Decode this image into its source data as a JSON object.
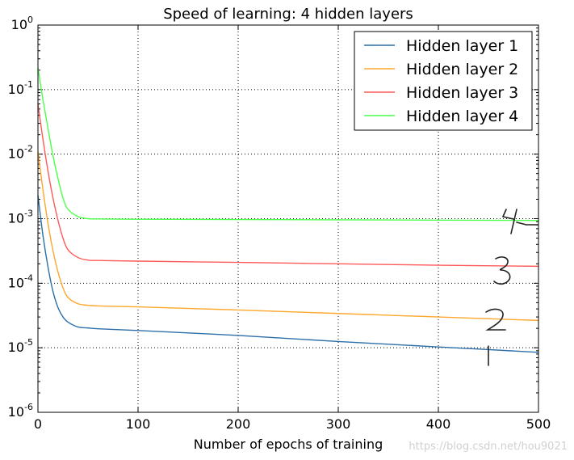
{
  "chart_data": {
    "type": "line",
    "title": "Speed of learning: 4 hidden layers",
    "xlabel": "Number of epochs of training",
    "ylabel": "",
    "yscale": "log",
    "xlim": [
      0,
      500
    ],
    "ylim": [
      1e-06,
      1
    ],
    "grid": true,
    "legend_position": "top-right",
    "x_ticks": [
      0,
      100,
      200,
      300,
      400,
      500
    ],
    "y_ticks": [
      {
        "value": 1e-06,
        "base": "10",
        "exp": "-6"
      },
      {
        "value": 1e-05,
        "base": "10",
        "exp": "-5"
      },
      {
        "value": 0.0001,
        "base": "10",
        "exp": "-4"
      },
      {
        "value": 0.001,
        "base": "10",
        "exp": "-3"
      },
      {
        "value": 0.01,
        "base": "10",
        "exp": "-2"
      },
      {
        "value": 0.1,
        "base": "10",
        "exp": "-1"
      },
      {
        "value": 1,
        "base": "10",
        "exp": "0"
      }
    ],
    "series": [
      {
        "name": "Hidden layer 1",
        "color": "#2c6fa9",
        "x": [
          0,
          5,
          10,
          15,
          20,
          25,
          30,
          40,
          50,
          60,
          100,
          200,
          300,
          400,
          500
        ],
        "values": [
          0.0023,
          0.00055,
          0.00018,
          7.5e-05,
          4.2e-05,
          3e-05,
          2.5e-05,
          2.1e-05,
          2.03e-05,
          1.97e-05,
          1.85e-05,
          1.55e-05,
          1.25e-05,
          1.03e-05,
          8.5e-06
        ]
      },
      {
        "name": "Hidden layer 2",
        "color": "#ffa62b",
        "x": [
          0,
          5,
          10,
          15,
          20,
          25,
          30,
          40,
          50,
          60,
          100,
          200,
          300,
          400,
          500
        ],
        "values": [
          0.011,
          0.0028,
          0.00085,
          0.00032,
          0.00015,
          8.5e-05,
          6e-05,
          4.8e-05,
          4.55e-05,
          4.45e-05,
          4.3e-05,
          3.85e-05,
          3.4e-05,
          3e-05,
          2.65e-05
        ]
      },
      {
        "name": "Hidden layer 3",
        "color": "#ff5a5a",
        "x": [
          0,
          5,
          10,
          15,
          20,
          25,
          30,
          40,
          50,
          60,
          100,
          200,
          300,
          400,
          500
        ],
        "values": [
          0.06,
          0.017,
          0.0055,
          0.0021,
          0.00095,
          0.0005,
          0.00033,
          0.00025,
          0.000228,
          0.000225,
          0.00022,
          0.00021,
          0.0002,
          0.00019,
          0.000183
        ]
      },
      {
        "name": "Hidden layer 4",
        "color": "#4cff4c",
        "x": [
          0,
          5,
          10,
          15,
          20,
          25,
          30,
          40,
          50,
          60,
          100,
          200,
          300,
          400,
          500
        ],
        "values": [
          0.22,
          0.07,
          0.025,
          0.0095,
          0.0042,
          0.0021,
          0.0014,
          0.00108,
          0.001,
          0.00099,
          0.00098,
          0.00097,
          0.00096,
          0.00095,
          0.00094
        ]
      }
    ],
    "annotations": [
      {
        "text": "4",
        "note": "handwritten",
        "x": 460,
        "y": 0.0011
      },
      {
        "text": "3",
        "note": "handwritten",
        "x": 460,
        "y": 0.00017
      },
      {
        "text": "2",
        "note": "handwritten",
        "x": 455,
        "y": 2.8e-05
      },
      {
        "text": "1",
        "note": "handwritten",
        "x": 450,
        "y": 8.5e-06
      }
    ]
  },
  "watermark": "https://blog.csdn.net/hou9021"
}
